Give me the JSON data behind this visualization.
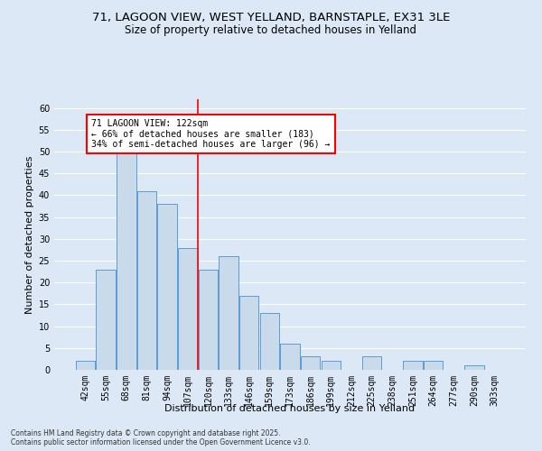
{
  "title_line1": "71, LAGOON VIEW, WEST YELLAND, BARNSTAPLE, EX31 3LE",
  "title_line2": "Size of property relative to detached houses in Yelland",
  "xlabel": "Distribution of detached houses by size in Yelland",
  "ylabel": "Number of detached properties",
  "footer": "Contains HM Land Registry data © Crown copyright and database right 2025.\nContains public sector information licensed under the Open Government Licence v3.0.",
  "annotation_title": "71 LAGOON VIEW: 122sqm",
  "annotation_line2": "← 66% of detached houses are smaller (183)",
  "annotation_line3": "34% of semi-detached houses are larger (96) →",
  "bar_color": "#c9daea",
  "bar_edge_color": "#5b9bd5",
  "vline_color": "red",
  "annotation_box_color": "red",
  "background_color": "#dce8f5",
  "grid_color": "white",
  "categories": [
    "42sqm",
    "55sqm",
    "68sqm",
    "81sqm",
    "94sqm",
    "107sqm",
    "120sqm",
    "133sqm",
    "146sqm",
    "159sqm",
    "173sqm",
    "186sqm",
    "199sqm",
    "212sqm",
    "225sqm",
    "238sqm",
    "251sqm",
    "264sqm",
    "277sqm",
    "290sqm",
    "303sqm"
  ],
  "values": [
    2,
    23,
    50,
    41,
    38,
    28,
    23,
    26,
    17,
    13,
    6,
    3,
    2,
    0,
    3,
    0,
    2,
    2,
    0,
    1,
    0
  ],
  "ylim": [
    0,
    62
  ],
  "yticks": [
    0,
    5,
    10,
    15,
    20,
    25,
    30,
    35,
    40,
    45,
    50,
    55,
    60
  ],
  "vline_position": 5.5,
  "title_fontsize": 9.5,
  "subtitle_fontsize": 8.5,
  "axis_label_fontsize": 8,
  "tick_fontsize": 7
}
